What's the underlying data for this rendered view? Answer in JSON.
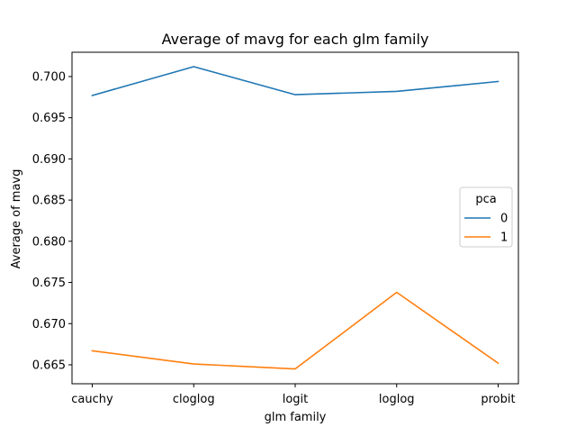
{
  "chart_data": {
    "type": "line",
    "title": "Average of mavg for each glm family",
    "xlabel": "glm family",
    "ylabel": "Average of mavg",
    "categories": [
      "cauchy",
      "cloglog",
      "logit",
      "loglog",
      "probit"
    ],
    "series": [
      {
        "name": "0",
        "color": "#1f77b4",
        "values": [
          0.6977,
          0.7012,
          0.6978,
          0.6982,
          0.6994
        ]
      },
      {
        "name": "1",
        "color": "#ff7f0e",
        "values": [
          0.6667,
          0.6651,
          0.6645,
          0.6738,
          0.6652
        ]
      }
    ],
    "ylim": [
      0.6627,
      0.70295
    ],
    "yticks": [
      "0.665",
      "0.670",
      "0.675",
      "0.680",
      "0.685",
      "0.690",
      "0.695",
      "0.700"
    ],
    "grid": false,
    "legend": {
      "title": "pca",
      "placement": "center-right"
    }
  }
}
